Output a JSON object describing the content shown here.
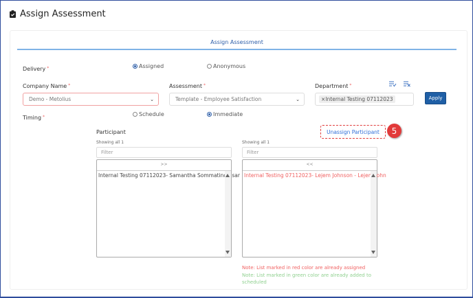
{
  "header": {
    "title": "Assign Assessment",
    "icon": "clipboard-check-icon"
  },
  "tab": {
    "label": "Assign Assessment"
  },
  "delivery": {
    "label": "Delivery",
    "options": [
      {
        "label": "Assigned",
        "checked": true
      },
      {
        "label": "Anonymous",
        "checked": false
      }
    ]
  },
  "company": {
    "label": "Company Name",
    "value": "Demo - Metolius"
  },
  "assessment": {
    "label": "Assessment",
    "value": "Template - Employee Satisfaction"
  },
  "department": {
    "label": "Department",
    "tag_remove": "×",
    "tag": "Internal Testing 07112023",
    "select_all_icon": "list-check-icon",
    "clear_icon": "list-clear-icon"
  },
  "apply_label": "Apply",
  "timing": {
    "label": "Timing",
    "options": [
      {
        "label": "Schedule",
        "checked": false
      },
      {
        "label": "Immediate",
        "checked": true
      }
    ]
  },
  "participant": {
    "label": "Participant",
    "unassign_label": "Unassign Participant",
    "step_badge": "5"
  },
  "left_list": {
    "count": "Showing all 1",
    "filter_placeholder": "Filter",
    "move_label": ">>",
    "items": [
      "Internal Testing 07112023- Samantha Sommatino - sar"
    ]
  },
  "right_list": {
    "count": "Showing all 1",
    "filter_placeholder": "Filter",
    "move_label": "<<",
    "items": [
      "Internal Testing 07112023- Lejem Johnson - Lejem.John"
    ]
  },
  "notes": {
    "red": "Note: List marked in red color are already assigned",
    "green": "Note: List marked in green color are already added to scheduled"
  },
  "colors": {
    "accent": "#1f5fa6",
    "assigned_red": "#f06060",
    "scheduled_green": "#8fd08f",
    "badge": "#e23a3a"
  }
}
